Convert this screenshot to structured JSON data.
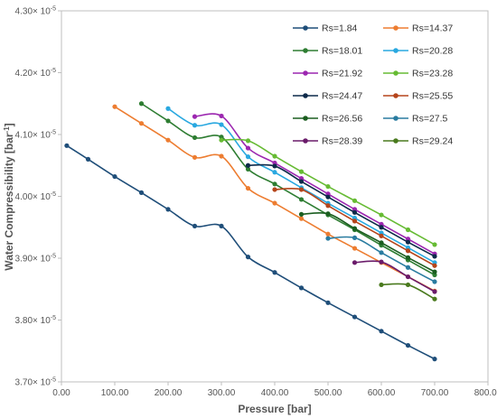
{
  "chart_data": {
    "type": "line",
    "xlabel": "Pressure [bar]",
    "ylabel": "Water Compressibility [bar",
    "ylabel_sup": "-1",
    "ylabel_close": "]",
    "xlim": [
      0,
      800
    ],
    "ylim": [
      3.7,
      4.3
    ],
    "x_ticks": [
      0,
      100,
      200,
      300,
      400,
      500,
      600,
      700,
      800
    ],
    "x_tick_labels": [
      "0.00",
      "100.00",
      "200.00",
      "300.00",
      "400.00",
      "500.00",
      "600.00",
      "700.00",
      "800.00"
    ],
    "y_ticks": [
      3.7,
      3.8,
      3.9,
      4.0,
      4.1,
      4.2,
      4.3
    ],
    "y_tick_labels": [
      "3.70",
      "3.80",
      "3.90",
      "4.00",
      "4.10",
      "4.20",
      "4.30"
    ],
    "y_tick_suffix": "× 10",
    "y_tick_exp": "-5",
    "legend_position": "top-right",
    "grid": false,
    "series": [
      {
        "name": "Rs=1.84",
        "color": "#1f4e79",
        "x": [
          10,
          50,
          100,
          150,
          200,
          250,
          300,
          350,
          400,
          450,
          500,
          550,
          600,
          650,
          700
        ],
        "y": [
          4.082,
          4.06,
          4.032,
          4.006,
          3.979,
          3.952,
          3.952,
          3.902,
          3.877,
          3.852,
          3.828,
          3.805,
          3.782,
          3.759,
          3.737
        ]
      },
      {
        "name": "Rs=14.37",
        "color": "#ed7d31",
        "x": [
          100,
          150,
          200,
          250,
          300,
          350,
          400,
          450,
          500,
          550,
          600,
          650,
          700
        ],
        "y": [
          4.145,
          4.118,
          4.091,
          4.063,
          4.065,
          4.013,
          3.989,
          3.964,
          3.939,
          3.916,
          3.893,
          3.87,
          3.847
        ]
      },
      {
        "name": "Rs=18.01",
        "color": "#2e7d32",
        "x": [
          150,
          200,
          250,
          300,
          350,
          400,
          450,
          500,
          550,
          600,
          650,
          700
        ],
        "y": [
          4.15,
          4.122,
          4.095,
          4.096,
          4.044,
          4.02,
          3.995,
          3.97,
          3.946,
          3.921,
          3.897,
          3.873
        ]
      },
      {
        "name": "Rs=20.28",
        "color": "#29a8e0",
        "x": [
          200,
          250,
          300,
          350,
          400,
          450,
          500,
          550,
          600,
          650,
          700
        ],
        "y": [
          4.142,
          4.115,
          4.116,
          4.064,
          4.039,
          4.014,
          3.989,
          3.965,
          3.941,
          3.917,
          3.893
        ]
      },
      {
        "name": "Rs=21.92",
        "color": "#9c27b0",
        "x": [
          250,
          300,
          350,
          400,
          450,
          500,
          550,
          600,
          650,
          700
        ],
        "y": [
          4.129,
          4.13,
          4.078,
          4.054,
          4.029,
          4.004,
          3.979,
          3.955,
          3.931,
          3.907
        ]
      },
      {
        "name": "Rs=23.28",
        "color": "#66bb33",
        "x": [
          300,
          350,
          400,
          450,
          500,
          550,
          600,
          650,
          700
        ],
        "y": [
          4.091,
          4.09,
          4.065,
          4.04,
          4.016,
          3.993,
          3.97,
          3.946,
          3.922
        ]
      },
      {
        "name": "Rs=24.47",
        "color": "#0d2a4a",
        "x": [
          350,
          400,
          450,
          500,
          550,
          600,
          650,
          700
        ],
        "y": [
          4.05,
          4.049,
          4.024,
          3.999,
          3.974,
          3.95,
          3.926,
          3.903
        ]
      },
      {
        "name": "Rs=25.55",
        "color": "#b5451b",
        "x": [
          400,
          450,
          500,
          550,
          600,
          650,
          700
        ],
        "y": [
          4.011,
          4.011,
          3.985,
          3.96,
          3.936,
          3.912,
          3.888
        ]
      },
      {
        "name": "Rs=26.56",
        "color": "#1b5e20",
        "x": [
          450,
          500,
          550,
          600,
          650,
          700
        ],
        "y": [
          3.971,
          3.972,
          3.948,
          3.925,
          3.901,
          3.878
        ]
      },
      {
        "name": "Rs=27.5",
        "color": "#2a7ca0",
        "x": [
          500,
          550,
          600,
          650,
          700
        ],
        "y": [
          3.932,
          3.933,
          3.909,
          3.885,
          3.862
        ]
      },
      {
        "name": "Rs=28.39",
        "color": "#6a1b6a",
        "x": [
          550,
          600,
          650,
          700
        ],
        "y": [
          3.893,
          3.894,
          3.87,
          3.846
        ]
      },
      {
        "name": "Rs=29.24",
        "color": "#4a7a1e",
        "x": [
          600,
          650,
          700
        ],
        "y": [
          3.857,
          3.857,
          3.834
        ]
      }
    ]
  }
}
